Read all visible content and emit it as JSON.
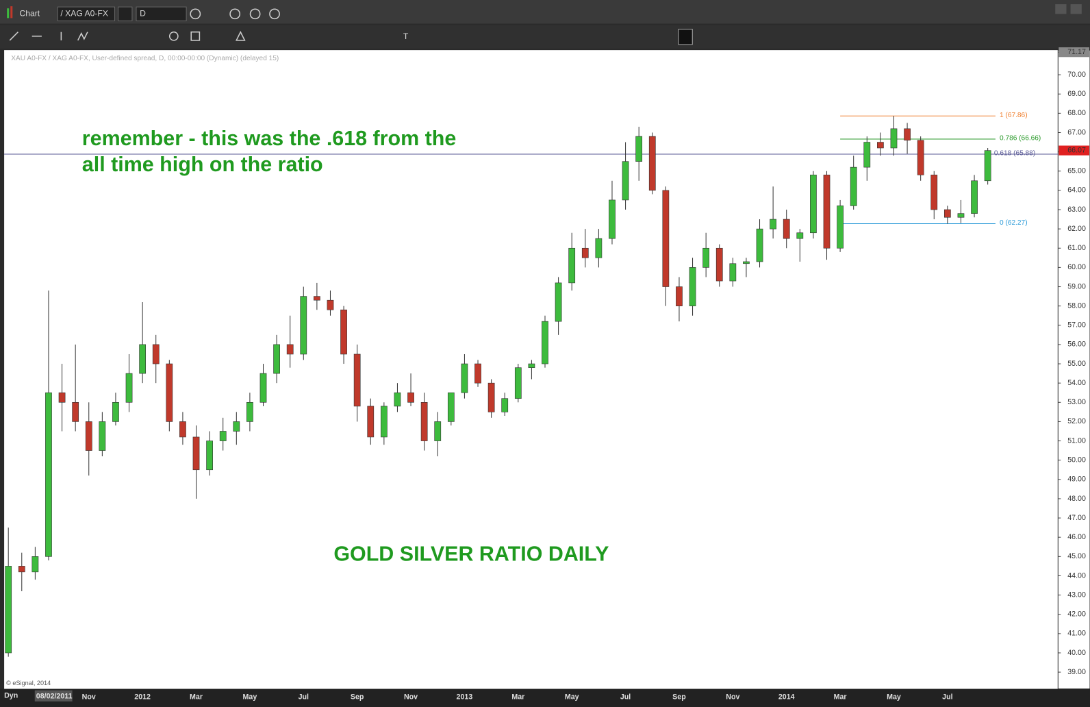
{
  "ui": {
    "window_title": "Chart",
    "symbol": "/ XAG A0-FX",
    "interval": "D",
    "subtitle": "XAU A0-FX / XAG A0-FX, User-defined spread, D, 00:00-00:00 (Dynamic) (delayed 15)",
    "copyright": "© eSignal, 2014",
    "mode": "Dyn",
    "start_date": "08/02/2011"
  },
  "chart_data": {
    "type": "candlestick",
    "annotations": [
      "remember - this was the .618 from the",
      "all time high on the ratio",
      "GOLD SILVER RATIO DAILY"
    ],
    "categories": [
      null,
      null,
      null,
      null,
      null,
      null,
      "Nov",
      null,
      null,
      null,
      "2012",
      null,
      null,
      null,
      "Mar",
      null,
      null,
      null,
      "May",
      null,
      null,
      null,
      "Jul",
      null,
      null,
      null,
      "Sep",
      null,
      null,
      null,
      "Nov",
      null,
      null,
      null,
      "2013",
      null,
      null,
      null,
      "Mar",
      null,
      null,
      null,
      "May",
      null,
      null,
      null,
      "Jul",
      null,
      null,
      null,
      "Sep",
      null,
      null,
      null,
      "Nov",
      null,
      null,
      null,
      "2014",
      null,
      null,
      null,
      "Mar",
      null,
      null,
      null,
      "May",
      null,
      null,
      null,
      "Jul",
      null,
      null,
      null
    ],
    "open": [
      40,
      44.5,
      44.2,
      45,
      53.5,
      53,
      52,
      50.5,
      52,
      53,
      54.5,
      56,
      55,
      52,
      51.2,
      49.5,
      51,
      51.5,
      52,
      53,
      54.5,
      56,
      55.5,
      58.5,
      58.3,
      57.8,
      55.5,
      52.8,
      51.2,
      52.8,
      53.5,
      53,
      51,
      52,
      53.5,
      55,
      54,
      52.5,
      53.2,
      54.8,
      55,
      57.2,
      59.2,
      61,
      60.5,
      61.5,
      63.5,
      65.5,
      66.8,
      64,
      59,
      58,
      60,
      61,
      59.3,
      60.2,
      60.3,
      62,
      62.5,
      61.5,
      61.8,
      64.8,
      61,
      63.2,
      65.2,
      66.5,
      66.2,
      67.2,
      66.6,
      64.8,
      63,
      62.6,
      62.8,
      64.5
    ],
    "high": [
      46.5,
      45.2,
      45.5,
      58.8,
      55,
      56,
      53,
      52.5,
      53.5,
      55.5,
      58.2,
      56.5,
      55.2,
      52.5,
      51.8,
      51.5,
      52.2,
      52.5,
      53.5,
      55,
      56.5,
      57.5,
      59,
      59.2,
      58.8,
      58,
      56,
      53.2,
      53,
      54,
      54.5,
      53.5,
      52.5,
      53.5,
      55.5,
      55.2,
      54.2,
      53.5,
      55,
      55.2,
      57.5,
      59.5,
      61.8,
      62,
      62,
      64.5,
      66.5,
      67.3,
      67,
      64.2,
      59.5,
      60.5,
      61.8,
      61.2,
      60.5,
      60.5,
      62.5,
      64.2,
      63,
      62,
      65,
      65,
      63.5,
      65.8,
      66.8,
      67,
      67.86,
      67.5,
      66.8,
      65,
      63.2,
      63.5,
      64.8,
      66.2
    ],
    "low": [
      39.8,
      43.2,
      43.8,
      44.8,
      51.5,
      51.5,
      49.2,
      50.2,
      51.8,
      52.5,
      54,
      54,
      51.5,
      50.8,
      48,
      49.2,
      50.5,
      50.8,
      51.5,
      52.8,
      54,
      54.8,
      55.2,
      57.8,
      57.5,
      55,
      52,
      50.8,
      50.8,
      52.5,
      52.8,
      50.5,
      50.2,
      51.8,
      53.2,
      53.8,
      52.2,
      52.3,
      53,
      54.2,
      54.8,
      56.5,
      58.8,
      60,
      60,
      61.2,
      63,
      64.5,
      63.8,
      58,
      57.2,
      57.5,
      59.5,
      59,
      59,
      59.5,
      60,
      61.5,
      61,
      60.3,
      61.5,
      60.4,
      60.8,
      63,
      64.5,
      65.8,
      65.8,
      65.9,
      64.5,
      62.5,
      62.27,
      62.3,
      62.6,
      64.3
    ],
    "close": [
      44.5,
      44.2,
      45,
      53.5,
      53,
      52,
      50.5,
      52,
      53,
      54.5,
      56,
      55,
      52,
      51.2,
      49.5,
      51,
      51.5,
      52,
      53,
      54.5,
      56,
      55.5,
      58.5,
      58.3,
      57.8,
      55.5,
      52.8,
      51.2,
      52.8,
      53.5,
      53,
      51,
      52,
      53.5,
      55,
      54,
      52.5,
      53.2,
      54.8,
      55,
      57.2,
      59.2,
      61,
      60.5,
      61.5,
      63.5,
      65.5,
      66.8,
      64,
      59,
      58,
      60,
      61,
      59.3,
      60.2,
      60.3,
      62,
      62.5,
      61.5,
      61.8,
      64.8,
      61,
      63.2,
      65.2,
      66.5,
      66.2,
      67.2,
      66.6,
      64.8,
      63,
      62.6,
      62.8,
      64.5,
      66.07
    ],
    "up_color": "#3dbb3d",
    "down_color": "#c0392b",
    "fib_levels": [
      {
        "value": 67.86,
        "label": "1 (67.86)",
        "color": "#f07f2f"
      },
      {
        "value": 66.66,
        "label": "0.786 (66.66)",
        "color": "#2a9a2a"
      },
      {
        "value": 65.88,
        "label": "0.618 (65.88)",
        "color": "#5a5a96"
      },
      {
        "value": 62.27,
        "label": "0 (62.27)",
        "color": "#2a9ad8"
      }
    ],
    "last_price": 66.07,
    "ylim": [
      38.13,
      71.17
    ],
    "yticks": [
      {
        "value": 39,
        "label": "39.00"
      },
      {
        "value": 40,
        "label": "40.00"
      },
      {
        "value": 41,
        "label": "41.00"
      },
      {
        "value": 42,
        "label": "42.00"
      },
      {
        "value": 43,
        "label": "43.00"
      },
      {
        "value": 44,
        "label": "44.00"
      },
      {
        "value": 45,
        "label": "45.00"
      },
      {
        "value": 46,
        "label": "46.00"
      },
      {
        "value": 47,
        "label": "47.00"
      },
      {
        "value": 48,
        "label": "48.00"
      },
      {
        "value": 49,
        "label": "49.00"
      },
      {
        "value": 50,
        "label": "50.00"
      },
      {
        "value": 51,
        "label": "51.00"
      },
      {
        "value": 52,
        "label": "52.00"
      },
      {
        "value": 53,
        "label": "53.00"
      },
      {
        "value": 54,
        "label": "54.00"
      },
      {
        "value": 55,
        "label": "55.00"
      },
      {
        "value": 56,
        "label": "56.00"
      },
      {
        "value": 57,
        "label": "57.00"
      },
      {
        "value": 58,
        "label": "58.00"
      },
      {
        "value": 59,
        "label": "59.00"
      },
      {
        "value": 60,
        "label": "60.00"
      },
      {
        "value": 61,
        "label": "61.00"
      },
      {
        "value": 62,
        "label": "62.00"
      },
      {
        "value": 63,
        "label": "63.00"
      },
      {
        "value": 64,
        "label": "64.00"
      },
      {
        "value": 65,
        "label": "65.00"
      },
      {
        "value": 66,
        "label": "66.00"
      },
      {
        "value": 67,
        "label": "67.00"
      },
      {
        "value": 68,
        "label": "68.00"
      },
      {
        "value": 69,
        "label": "69.00"
      },
      {
        "value": 70,
        "label": "70.00"
      },
      71.17
    ],
    "grid": false
  }
}
